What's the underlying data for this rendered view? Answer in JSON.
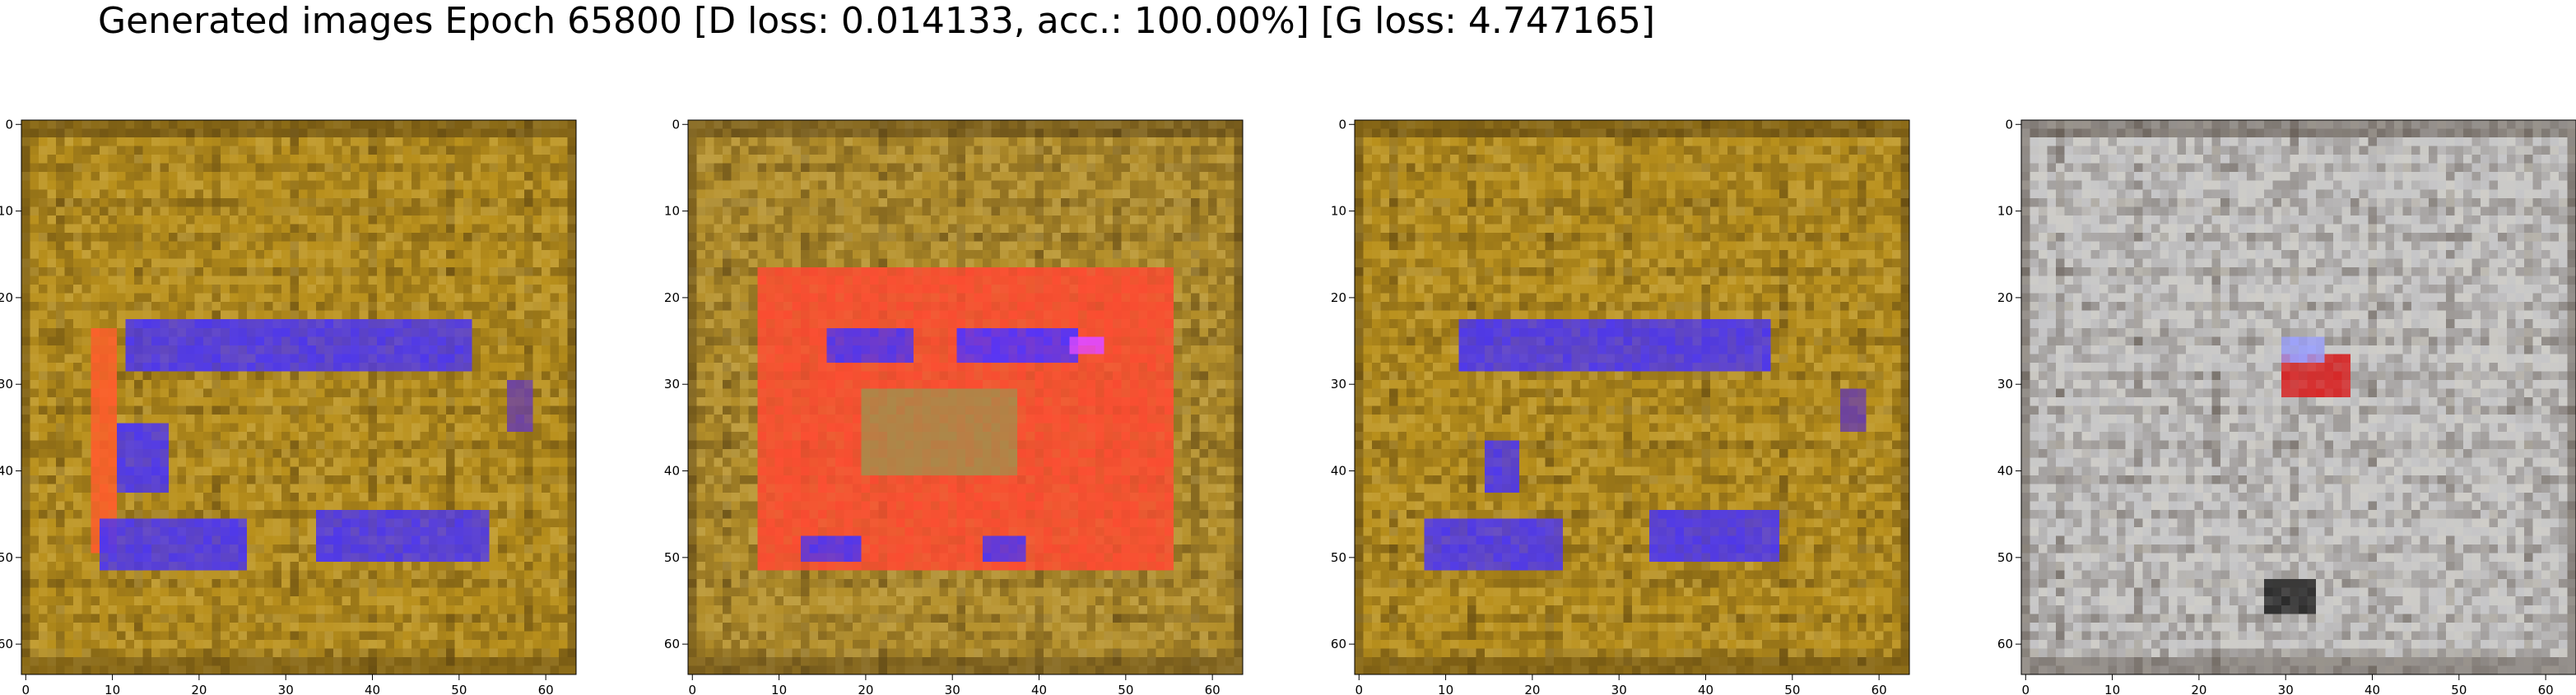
{
  "figure": {
    "title": "Generated images Epoch 65800 [D loss: 0.014133, acc.: 100.00%] [G loss: 4.747165]"
  },
  "axes": {
    "x_ticks": [
      "0",
      "10",
      "20",
      "30",
      "40",
      "50",
      "60"
    ],
    "y_ticks": [
      "0",
      "10",
      "20",
      "30",
      "40",
      "50",
      "60"
    ],
    "range": [
      0,
      63
    ]
  },
  "panels": [
    {
      "id": "panel-1",
      "base": "#b9901c",
      "accent": "#3f2dff",
      "secondary": "#ff4a2a",
      "blobs": [
        {
          "x": 12,
          "y": 22.5,
          "w": 40,
          "h": 6,
          "color": "#4b35f4"
        },
        {
          "x": 8,
          "y": 24,
          "w": 3,
          "h": 26,
          "color": "#ff5d2c"
        },
        {
          "x": 11,
          "y": 35,
          "w": 6,
          "h": 8,
          "color": "#4b35f4"
        },
        {
          "x": 9,
          "y": 46,
          "w": 17,
          "h": 5.5,
          "color": "#4b35f4"
        },
        {
          "x": 34,
          "y": 45,
          "w": 20,
          "h": 6,
          "color": "#4b35f4"
        },
        {
          "x": 56,
          "y": 30,
          "w": 3,
          "h": 6,
          "color": "#6a3fa8"
        }
      ]
    },
    {
      "id": "panel-2",
      "base": "#b48f2a",
      "accent": "#3f2dff",
      "secondary": "#ff3a2a",
      "blobs": [
        {
          "x": 8,
          "y": 17,
          "w": 48,
          "h": 35,
          "color": "#ff4a32"
        },
        {
          "x": 16,
          "y": 24,
          "w": 10,
          "h": 4,
          "color": "#4b35f4"
        },
        {
          "x": 31,
          "y": 24,
          "w": 14,
          "h": 4,
          "color": "#5033ff"
        },
        {
          "x": 44,
          "y": 24.5,
          "w": 4,
          "h": 2.5,
          "color": "#e04aff"
        },
        {
          "x": 20,
          "y": 31,
          "w": 18,
          "h": 10,
          "color": "#a98a4a"
        },
        {
          "x": 13,
          "y": 48,
          "w": 7,
          "h": 3,
          "color": "#4b35f4"
        },
        {
          "x": 34,
          "y": 48,
          "w": 5,
          "h": 3,
          "color": "#4b35f4"
        }
      ]
    },
    {
      "id": "panel-3",
      "base": "#b9901c",
      "accent": "#3f2dff",
      "secondary": "#ff4a2a",
      "blobs": [
        {
          "x": 12,
          "y": 22.5,
          "w": 36,
          "h": 6,
          "color": "#4b35f4"
        },
        {
          "x": 15,
          "y": 37,
          "w": 4,
          "h": 6,
          "color": "#4b35f4"
        },
        {
          "x": 8,
          "y": 46,
          "w": 16,
          "h": 5.5,
          "color": "#4b35f4"
        },
        {
          "x": 34,
          "y": 45,
          "w": 15,
          "h": 6,
          "color": "#4b35f4"
        },
        {
          "x": 56,
          "y": 31,
          "w": 3,
          "h": 5,
          "color": "#6a3fa8"
        }
      ]
    },
    {
      "id": "panel-4",
      "base": "#c6c6c8",
      "accent": "#1a1a35",
      "secondary": "#d81a1a",
      "blobs": [
        {
          "x": 30,
          "y": 27,
          "w": 8,
          "h": 5,
          "color": "#d82020"
        },
        {
          "x": 28,
          "y": 53,
          "w": 6,
          "h": 4,
          "color": "#222222"
        },
        {
          "x": 30,
          "y": 25,
          "w": 5,
          "h": 2.5,
          "color": "#9aa0ff"
        }
      ]
    }
  ]
}
